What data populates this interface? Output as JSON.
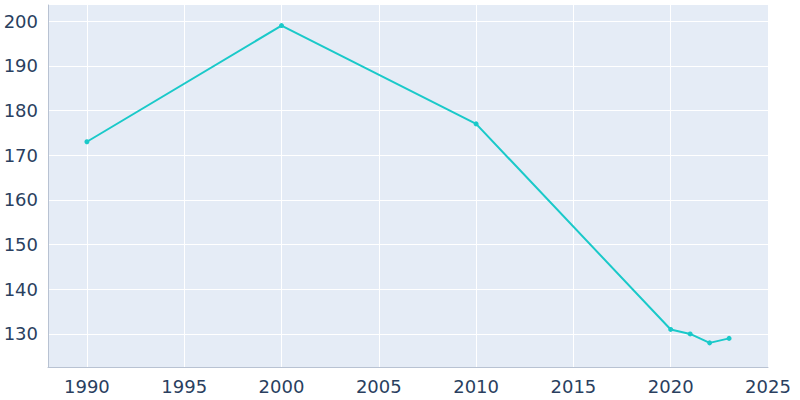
{
  "chart_data": {
    "type": "line",
    "x": [
      1990,
      2000,
      2010,
      2020,
      2021,
      2022,
      2023
    ],
    "values": [
      173,
      199,
      177,
      131,
      130,
      128,
      129
    ],
    "color": "#1ac9c9",
    "marker": "circle",
    "xlim": [
      1988,
      2025
    ],
    "xticks": [
      1990,
      1995,
      2000,
      2005,
      2010,
      2015,
      2020,
      2025
    ],
    "ylim": [
      122.6,
      203.6
    ],
    "yticks": [
      130,
      140,
      150,
      160,
      170,
      180,
      190,
      200
    ],
    "grid": true
  }
}
